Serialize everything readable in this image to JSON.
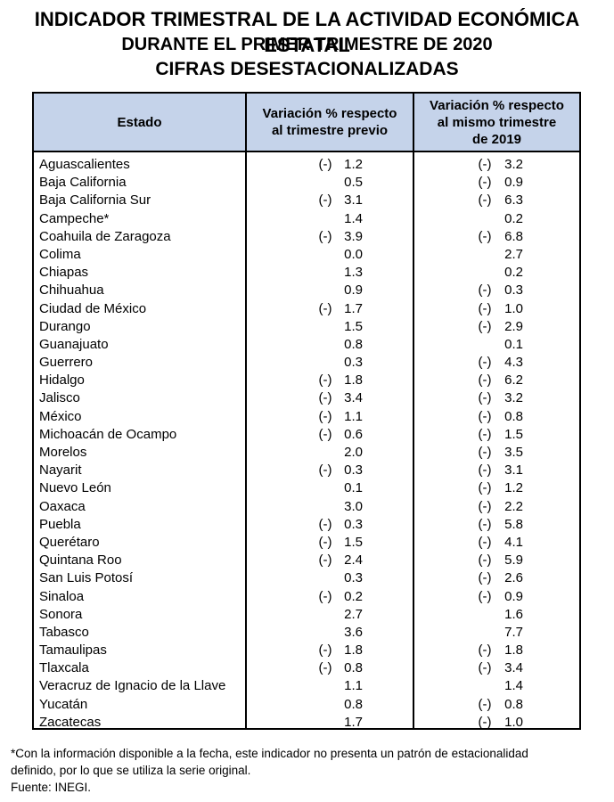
{
  "title": {
    "line1": "INDICADOR TRIMESTRAL DE LA ACTIVIDAD ECONÓMICA ESTATAL",
    "line2": "DURANTE EL PRIMER TRIMESTRE DE 2020",
    "line3": "CIFRAS DESESTACIONALIZADAS"
  },
  "table": {
    "headers": {
      "estado": "Estado",
      "previo_1": "Variación % respecto",
      "previo_2": "al trimestre previo",
      "anual_1": "Variación % respecto",
      "anual_2": "al mismo trimestre",
      "anual_3": "de 2019"
    },
    "rows": [
      {
        "estado": "Aguascalientes",
        "previo_sign": "(-)",
        "previo": "1.2",
        "anual_sign": "(-)",
        "anual": "3.2"
      },
      {
        "estado": "Baja California",
        "previo_sign": "",
        "previo": "0.5",
        "anual_sign": "(-)",
        "anual": "0.9"
      },
      {
        "estado": "Baja California Sur",
        "previo_sign": "(-)",
        "previo": "3.1",
        "anual_sign": "(-)",
        "anual": "6.3"
      },
      {
        "estado": "Campeche*",
        "previo_sign": "",
        "previo": "1.4",
        "anual_sign": "",
        "anual": "0.2"
      },
      {
        "estado": "Coahuila de Zaragoza",
        "previo_sign": "(-)",
        "previo": "3.9",
        "anual_sign": "(-)",
        "anual": "6.8"
      },
      {
        "estado": "Colima",
        "previo_sign": "",
        "previo": "0.0",
        "anual_sign": "",
        "anual": "2.7"
      },
      {
        "estado": "Chiapas",
        "previo_sign": "",
        "previo": "1.3",
        "anual_sign": "",
        "anual": "0.2"
      },
      {
        "estado": "Chihuahua",
        "previo_sign": "",
        "previo": "0.9",
        "anual_sign": "(-)",
        "anual": "0.3"
      },
      {
        "estado": "Ciudad de México",
        "previo_sign": "(-)",
        "previo": "1.7",
        "anual_sign": "(-)",
        "anual": "1.0"
      },
      {
        "estado": "Durango",
        "previo_sign": "",
        "previo": "1.5",
        "anual_sign": "(-)",
        "anual": "2.9"
      },
      {
        "estado": "Guanajuato",
        "previo_sign": "",
        "previo": "0.8",
        "anual_sign": "",
        "anual": "0.1"
      },
      {
        "estado": "Guerrero",
        "previo_sign": "",
        "previo": "0.3",
        "anual_sign": "(-)",
        "anual": "4.3"
      },
      {
        "estado": "Hidalgo",
        "previo_sign": "(-)",
        "previo": "1.8",
        "anual_sign": "(-)",
        "anual": "6.2"
      },
      {
        "estado": "Jalisco",
        "previo_sign": "(-)",
        "previo": "3.4",
        "anual_sign": "(-)",
        "anual": "3.2"
      },
      {
        "estado": "México",
        "previo_sign": "(-)",
        "previo": "1.1",
        "anual_sign": "(-)",
        "anual": "0.8"
      },
      {
        "estado": "Michoacán de Ocampo",
        "previo_sign": "(-)",
        "previo": "0.6",
        "anual_sign": "(-)",
        "anual": "1.5"
      },
      {
        "estado": "Morelos",
        "previo_sign": "",
        "previo": "2.0",
        "anual_sign": "(-)",
        "anual": "3.5"
      },
      {
        "estado": "Nayarit",
        "previo_sign": "(-)",
        "previo": "0.3",
        "anual_sign": "(-)",
        "anual": "3.1"
      },
      {
        "estado": "Nuevo León",
        "previo_sign": "",
        "previo": "0.1",
        "anual_sign": "(-)",
        "anual": "1.2"
      },
      {
        "estado": "Oaxaca",
        "previo_sign": "",
        "previo": "3.0",
        "anual_sign": "(-)",
        "anual": "2.2"
      },
      {
        "estado": "Puebla",
        "previo_sign": "(-)",
        "previo": "0.3",
        "anual_sign": "(-)",
        "anual": "5.8"
      },
      {
        "estado": "Querétaro",
        "previo_sign": "(-)",
        "previo": "1.5",
        "anual_sign": "(-)",
        "anual": "4.1"
      },
      {
        "estado": "Quintana Roo",
        "previo_sign": "(-)",
        "previo": "2.4",
        "anual_sign": "(-)",
        "anual": "5.9"
      },
      {
        "estado": "San Luis Potosí",
        "previo_sign": "",
        "previo": "0.3",
        "anual_sign": "(-)",
        "anual": "2.6"
      },
      {
        "estado": "Sinaloa",
        "previo_sign": "(-)",
        "previo": "0.2",
        "anual_sign": "(-)",
        "anual": "0.9"
      },
      {
        "estado": "Sonora",
        "previo_sign": "",
        "previo": "2.7",
        "anual_sign": "",
        "anual": "1.6"
      },
      {
        "estado": "Tabasco",
        "previo_sign": "",
        "previo": "3.6",
        "anual_sign": "",
        "anual": "7.7"
      },
      {
        "estado": "Tamaulipas",
        "previo_sign": "(-)",
        "previo": "1.8",
        "anual_sign": "(-)",
        "anual": "1.8"
      },
      {
        "estado": "Tlaxcala",
        "previo_sign": "(-)",
        "previo": "0.8",
        "anual_sign": "(-)",
        "anual": "3.4"
      },
      {
        "estado": "Veracruz de Ignacio de la Llave",
        "previo_sign": "",
        "previo": "1.1",
        "anual_sign": "",
        "anual": "1.4"
      },
      {
        "estado": "Yucatán",
        "previo_sign": "",
        "previo": "0.8",
        "anual_sign": "(-)",
        "anual": "0.8"
      },
      {
        "estado": "Zacatecas",
        "previo_sign": "",
        "previo": "1.7",
        "anual_sign": "(-)",
        "anual": "1.0"
      }
    ]
  },
  "footnote": {
    "line1": "*Con la información disponible a la fecha, este indicador no presenta un patrón de estacionalidad",
    "line2": "definido, por lo que se utiliza la serie original.",
    "source": "Fuente: INEGI."
  },
  "colors": {
    "header_background": "#c5d3ea",
    "border": "#000000"
  }
}
